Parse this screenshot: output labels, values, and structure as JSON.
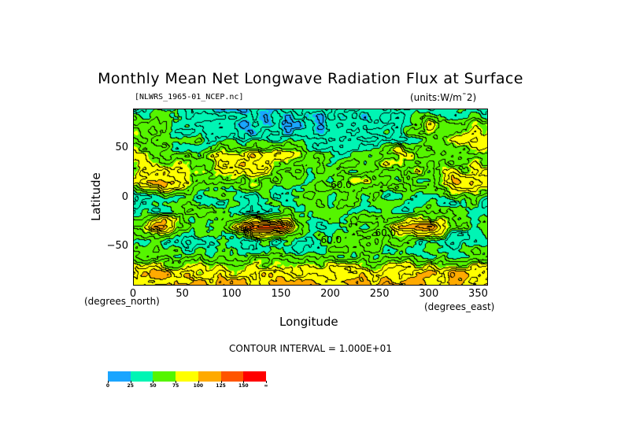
{
  "chart_data": {
    "type": "heatmap",
    "title": "Monthly Mean Net Longwave Radiation Flux at Surface",
    "subtitle_left": "[NLWRS_1965-01_NCEP.nc]",
    "subtitle_right": "(units:W/m¯2)",
    "xlabel": "Longitude",
    "ylabel": "Latitude",
    "x_units": "(degrees_east)",
    "y_units": "(degrees_north)",
    "xlim": [
      0,
      360
    ],
    "ylim": [
      -90,
      90
    ],
    "x_ticks": [
      "0",
      "50",
      "100",
      "150",
      "200",
      "250",
      "300",
      "350"
    ],
    "x_tick_values": [
      0,
      50,
      100,
      150,
      200,
      250,
      300,
      350
    ],
    "y_ticks": [
      "50",
      "0",
      "−50"
    ],
    "y_tick_values": [
      50,
      0,
      -50
    ],
    "contour_interval_text": "CONTOUR INTERVAL = 1.000E+01",
    "contour_labels": [
      {
        "text": "60.0",
        "lon": 210,
        "lat": 12
      },
      {
        "text": "60.0",
        "lon": 200,
        "lat": -44
      },
      {
        "text": "60.0",
        "lon": 255,
        "lat": -37
      }
    ],
    "colorbar": {
      "levels": [
        "0",
        "25",
        "50",
        "75",
        "100",
        "125",
        "150",
        "∞"
      ],
      "colors": [
        "#1aa5ff",
        "#00f5b4",
        "#55f500",
        "#ffff00",
        "#ffaa00",
        "#ff5500",
        "#ff0000"
      ]
    },
    "grid_lon": [
      0,
      30,
      60,
      90,
      120,
      150,
      180,
      210,
      240,
      270,
      300,
      330,
      360
    ],
    "grid_lat": [
      90,
      75,
      60,
      45,
      30,
      15,
      0,
      -15,
      -30,
      -45,
      -60,
      -75,
      -90
    ],
    "values": [
      [
        40,
        40,
        35,
        30,
        30,
        30,
        35,
        35,
        40,
        40,
        45,
        45,
        40
      ],
      [
        70,
        55,
        35,
        30,
        20,
        25,
        30,
        30,
        30,
        40,
        80,
        60,
        70
      ],
      [
        80,
        60,
        50,
        40,
        30,
        40,
        35,
        30,
        35,
        45,
        60,
        85,
        80
      ],
      [
        75,
        60,
        55,
        70,
        90,
        80,
        55,
        45,
        60,
        85,
        55,
        60,
        75
      ],
      [
        80,
        80,
        60,
        85,
        100,
        70,
        60,
        55,
        60,
        70,
        65,
        80,
        80
      ],
      [
        90,
        110,
        75,
        65,
        70,
        55,
        55,
        55,
        80,
        55,
        60,
        100,
        90
      ],
      [
        40,
        40,
        55,
        50,
        45,
        45,
        55,
        60,
        50,
        55,
        40,
        60,
        40
      ],
      [
        40,
        60,
        55,
        55,
        40,
        55,
        50,
        50,
        50,
        50,
        60,
        40,
        40
      ],
      [
        60,
        115,
        45,
        50,
        125,
        130,
        40,
        55,
        60,
        90,
        110,
        50,
        60
      ],
      [
        45,
        50,
        40,
        55,
        40,
        45,
        40,
        60,
        55,
        60,
        45,
        40,
        45
      ],
      [
        60,
        55,
        55,
        50,
        60,
        55,
        55,
        55,
        50,
        55,
        55,
        55,
        60
      ],
      [
        90,
        95,
        85,
        80,
        90,
        85,
        80,
        95,
        85,
        90,
        90,
        95,
        90
      ],
      [
        100,
        105,
        110,
        100,
        95,
        110,
        100,
        100,
        110,
        105,
        100,
        110,
        100
      ]
    ]
  }
}
